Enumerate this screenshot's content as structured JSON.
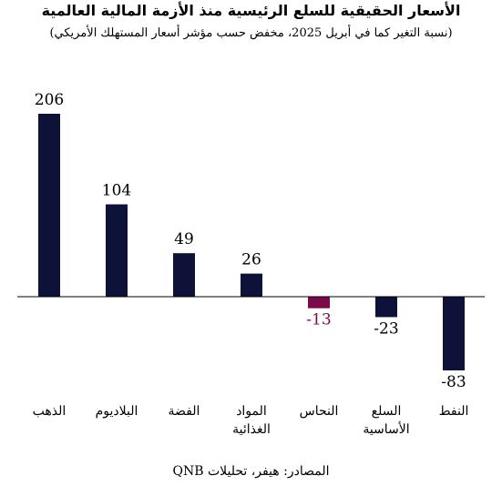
{
  "title": "الأسعار الحقيقية للسلع الرئيسية منذ الأزمة المالية العالمية",
  "subtitle": "(نسبة التغير كما في أبريل 2025، مخفض حسب مؤشر أسعار المستهلك الأمريكي)",
  "source": "المصادر: هيفر، تحليلات QNB",
  "colors": {
    "bar": "#0e1138",
    "highlight": "#7b0a4a",
    "axis": "#000000",
    "text": "#000000"
  },
  "chart_data": {
    "type": "bar",
    "categories": [
      [
        "الذهب"
      ],
      [
        "البلاديوم"
      ],
      [
        "الفضة"
      ],
      [
        "المواد",
        "الغذائية"
      ],
      [
        "النحاس"
      ],
      [
        "السلع",
        "الأساسية"
      ],
      [
        "النفط"
      ]
    ],
    "values": [
      206,
      104,
      49,
      26,
      -13,
      -23,
      -83
    ],
    "labels": [
      "206",
      "104",
      "49",
      "26",
      "-13",
      "-23",
      "-83"
    ],
    "highlight_index": 4,
    "ylim": [
      -83,
      206
    ],
    "xlabel": "",
    "ylabel": "",
    "grid": false,
    "legend": "none"
  }
}
